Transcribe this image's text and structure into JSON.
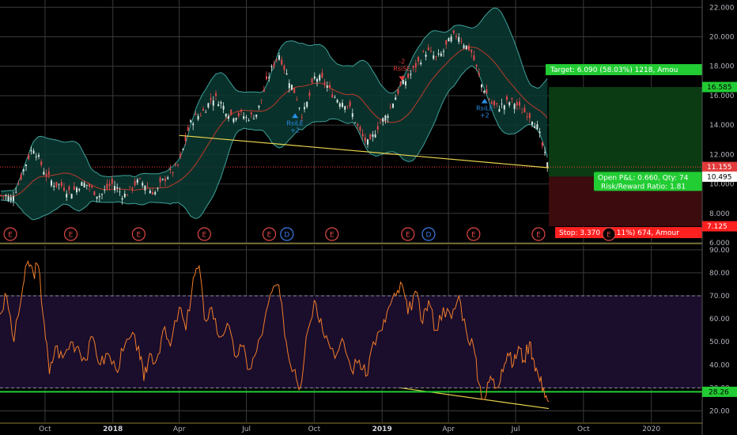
{
  "chart_data": [
    {
      "type": "candlestick",
      "panel": "price",
      "ylim": [
        6,
        22.5
      ],
      "y_ticks": [
        "22.000",
        "20.000",
        "18.000",
        "16.000",
        "14.000",
        "12.000",
        "10.000",
        "8.000",
        "6.000"
      ],
      "x_ticks": [
        "Oct",
        "2018",
        "Apr",
        "Jul",
        "Oct",
        "2019",
        "Apr",
        "Jul",
        "Oct",
        "2020"
      ],
      "x_ticks_bold": [
        "2018",
        "2019"
      ],
      "close_points": [
        [
          "2017-08-01",
          9.2
        ],
        [
          "2017-08-15",
          8.8
        ],
        [
          "2017-09-01",
          11.0
        ],
        [
          "2017-09-15",
          12.3
        ],
        [
          "2017-10-01",
          11.0
        ],
        [
          "2017-10-15",
          9.8
        ],
        [
          "2017-11-01",
          9.6
        ],
        [
          "2017-11-15",
          9.9
        ],
        [
          "2017-12-01",
          9.7
        ],
        [
          "2017-12-15",
          9.4
        ],
        [
          "2018-01-01",
          9.8
        ],
        [
          "2018-01-15",
          9.4
        ],
        [
          "2018-02-01",
          9.9
        ],
        [
          "2018-02-15",
          10.0
        ],
        [
          "2018-03-01",
          9.5
        ],
        [
          "2018-03-15",
          10.3
        ],
        [
          "2018-04-01",
          11.6
        ],
        [
          "2018-04-15",
          13.8
        ],
        [
          "2018-05-01",
          15.0
        ],
        [
          "2018-05-15",
          15.8
        ],
        [
          "2018-06-01",
          15.2
        ],
        [
          "2018-06-15",
          14.8
        ],
        [
          "2018-07-01",
          14.3
        ],
        [
          "2018-07-15",
          15.0
        ],
        [
          "2018-08-01",
          17.2
        ],
        [
          "2018-08-15",
          19.0
        ],
        [
          "2018-09-01",
          16.5
        ],
        [
          "2018-09-15",
          14.6
        ],
        [
          "2018-10-01",
          17.3
        ],
        [
          "2018-10-15",
          16.7
        ],
        [
          "2018-11-01",
          16.0
        ],
        [
          "2018-11-15",
          15.2
        ],
        [
          "2018-12-01",
          13.8
        ],
        [
          "2018-12-15",
          12.6
        ],
        [
          "2019-01-01",
          14.3
        ],
        [
          "2019-01-15",
          15.6
        ],
        [
          "2019-02-01",
          16.8
        ],
        [
          "2019-02-15",
          18.2
        ],
        [
          "2019-03-01",
          18.8
        ],
        [
          "2019-03-15",
          18.6
        ],
        [
          "2019-04-01",
          19.6
        ],
        [
          "2019-04-15",
          20.0
        ],
        [
          "2019-05-01",
          19.3
        ],
        [
          "2019-05-15",
          16.6
        ],
        [
          "2019-06-01",
          15.5
        ],
        [
          "2019-06-15",
          15.2
        ],
        [
          "2019-07-01",
          15.6
        ],
        [
          "2019-07-15",
          14.9
        ],
        [
          "2019-08-01",
          13.6
        ],
        [
          "2019-08-15",
          11.15
        ]
      ],
      "trendline": [
        [
          "2018-04-01",
          13.3
        ],
        [
          "2019-08-15",
          11.1
        ]
      ],
      "position": {
        "entry": 10.495,
        "target": 16.585,
        "stop": 7.125,
        "target_label": "Target: 6.090 (58.03%) 1218, Amou",
        "pnl_label": "Open P&L: 0.660, Qty: 74",
        "rr_label": "Risk/Reward Ratio: 1.81",
        "stop_label": "Stop: 3.370 (32.11%) 674, Amour"
      },
      "price_labels": {
        "last": "11.155",
        "entry": "10.495",
        "target": "16.585",
        "stop": "7.125"
      },
      "signals": [
        {
          "date": "2018-09-05",
          "price": 14.8,
          "dir": "up",
          "label": "RsiLE",
          "sub": "+2"
        },
        {
          "date": "2019-01-28",
          "price": 17.0,
          "dir": "down",
          "label": "RsiSE",
          "sub": "-2"
        },
        {
          "date": "2019-05-20",
          "price": 15.8,
          "dir": "up",
          "label": "RsiLE",
          "sub": "+2"
        }
      ],
      "events": [
        {
          "date": "2017-08-15",
          "label": "E"
        },
        {
          "date": "2017-11-05",
          "label": "E"
        },
        {
          "date": "2018-02-05",
          "label": "E"
        },
        {
          "date": "2018-05-05",
          "label": "E"
        },
        {
          "date": "2018-08-01",
          "label": "E"
        },
        {
          "date": "2018-08-25",
          "label": "D"
        },
        {
          "date": "2018-10-25",
          "label": "E"
        },
        {
          "date": "2019-02-05",
          "label": "E"
        },
        {
          "date": "2019-03-05",
          "label": "D"
        },
        {
          "date": "2019-05-05",
          "label": "E"
        },
        {
          "date": "2019-08-01",
          "label": "E"
        },
        {
          "date": "2019-11-01",
          "label": "E"
        }
      ]
    },
    {
      "type": "line",
      "panel": "oscillator",
      "ylim": [
        15,
        92
      ],
      "y_ticks": [
        "90.00",
        "80.00",
        "70.00",
        "60.00",
        "50.00",
        "40.00",
        "30.00",
        "20.00"
      ],
      "band": [
        30,
        70
      ],
      "hline": {
        "value": 28.26,
        "label": "28.26"
      },
      "trendline": [
        [
          "2018-01-20",
          46.5
        ],
        [
          "2019-08-15",
          21.0
        ]
      ],
      "series": [
        {
          "points": [
            [
              "2017-08-01",
              62
            ],
            [
              "2017-08-10",
              70
            ],
            [
              "2017-08-20",
              50
            ],
            [
              "2017-09-01",
              74
            ],
            [
              "2017-09-08",
              85
            ],
            [
              "2017-09-15",
              80
            ],
            [
              "2017-09-22",
              83
            ],
            [
              "2017-09-30",
              58
            ],
            [
              "2017-10-07",
              36
            ],
            [
              "2017-10-15",
              48
            ],
            [
              "2017-10-25",
              43
            ],
            [
              "2017-11-05",
              50
            ],
            [
              "2017-11-15",
              48
            ],
            [
              "2017-11-25",
              42
            ],
            [
              "2017-12-05",
              52
            ],
            [
              "2017-12-15",
              40
            ],
            [
              "2017-12-25",
              45
            ],
            [
              "2018-01-05",
              38
            ],
            [
              "2018-01-15",
              46
            ],
            [
              "2018-01-25",
              52
            ],
            [
              "2018-02-05",
              48
            ],
            [
              "2018-02-12",
              33
            ],
            [
              "2018-02-20",
              45
            ],
            [
              "2018-03-01",
              42
            ],
            [
              "2018-03-10",
              55
            ],
            [
              "2018-03-20",
              48
            ],
            [
              "2018-04-01",
              65
            ],
            [
              "2018-04-10",
              55
            ],
            [
              "2018-04-20",
              78
            ],
            [
              "2018-04-28",
              83
            ],
            [
              "2018-05-05",
              60
            ],
            [
              "2018-05-15",
              65
            ],
            [
              "2018-05-25",
              52
            ],
            [
              "2018-06-05",
              58
            ],
            [
              "2018-06-15",
              44
            ],
            [
              "2018-06-25",
              48
            ],
            [
              "2018-07-05",
              38
            ],
            [
              "2018-07-15",
              46
            ],
            [
              "2018-07-25",
              58
            ],
            [
              "2018-08-05",
              72
            ],
            [
              "2018-08-12",
              75
            ],
            [
              "2018-08-20",
              60
            ],
            [
              "2018-08-28",
              42
            ],
            [
              "2018-09-05",
              38
            ],
            [
              "2018-09-12",
              30
            ],
            [
              "2018-09-20",
              52
            ],
            [
              "2018-10-01",
              68
            ],
            [
              "2018-10-10",
              60
            ],
            [
              "2018-10-20",
              50
            ],
            [
              "2018-11-01",
              45
            ],
            [
              "2018-11-10",
              50
            ],
            [
              "2018-11-20",
              38
            ],
            [
              "2018-12-01",
              42
            ],
            [
              "2018-12-10",
              35
            ],
            [
              "2018-12-20",
              50
            ],
            [
              "2019-01-01",
              55
            ],
            [
              "2019-01-10",
              65
            ],
            [
              "2019-01-20",
              70
            ],
            [
              "2019-01-28",
              75
            ],
            [
              "2019-02-05",
              62
            ],
            [
              "2019-02-15",
              72
            ],
            [
              "2019-02-25",
              58
            ],
            [
              "2019-03-05",
              68
            ],
            [
              "2019-03-15",
              55
            ],
            [
              "2019-03-25",
              65
            ],
            [
              "2019-04-05",
              60
            ],
            [
              "2019-04-15",
              70
            ],
            [
              "2019-04-25",
              55
            ],
            [
              "2019-05-05",
              48
            ],
            [
              "2019-05-12",
              32
            ],
            [
              "2019-05-20",
              25
            ],
            [
              "2019-05-28",
              35
            ],
            [
              "2019-06-05",
              30
            ],
            [
              "2019-06-12",
              38
            ],
            [
              "2019-06-20",
              45
            ],
            [
              "2019-06-28",
              40
            ],
            [
              "2019-07-05",
              48
            ],
            [
              "2019-07-12",
              42
            ],
            [
              "2019-07-20",
              50
            ],
            [
              "2019-07-26",
              42
            ],
            [
              "2019-08-01",
              35
            ],
            [
              "2019-08-08",
              30
            ],
            [
              "2019-08-15",
              24
            ]
          ]
        }
      ]
    }
  ],
  "colors": {
    "grid": "#3a3a3a",
    "bb_line": "#3ea09a",
    "bb_fill": "#0b3a33",
    "candle_up": "#d9e8e4",
    "candle_down": "#e0494b",
    "trend": "#e8d44d",
    "osc": "#f07d2a",
    "osc_band": "#1b0d2c",
    "profit_fill": "#0b3b13",
    "loss_fill": "#3b0b0e",
    "green": "#22cc33",
    "red": "#ff2020",
    "signal_up": "#2a8fe8",
    "signal_down": "#e23b3b",
    "axis_text": "#b2b5be"
  }
}
